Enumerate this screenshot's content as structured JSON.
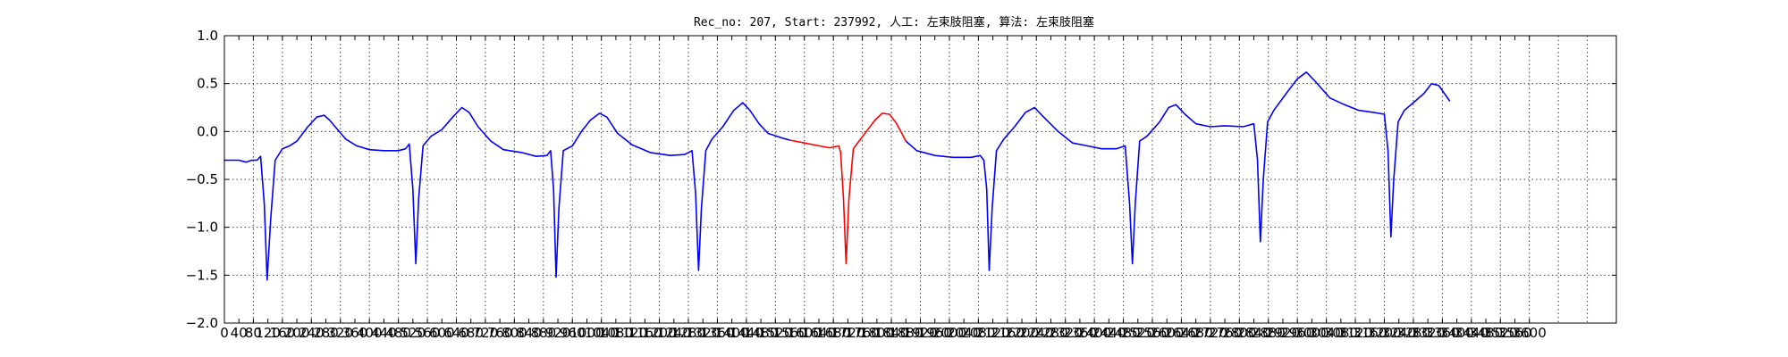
{
  "chart_data": {
    "type": "line",
    "title": "Rec_no: 207, Start: 237992, 人工: 左束肢阻塞, 算法: 左束肢阻塞",
    "xlabel": "",
    "ylabel": "",
    "xlim": [
      0,
      3840
    ],
    "ylim": [
      -2.0,
      1.0
    ],
    "grid": true,
    "legend": "none",
    "x_ticks": [
      0,
      40,
      80,
      120,
      160,
      200,
      240,
      280,
      320,
      360,
      400,
      440,
      480,
      520,
      560,
      600,
      640,
      680,
      720,
      760,
      800,
      840,
      880,
      920,
      960,
      1000,
      1040,
      1080,
      1120,
      1160,
      1200,
      1240,
      1280,
      1320,
      1360,
      1400,
      1440,
      1480,
      1520,
      1560,
      1600,
      1640,
      1680,
      1720,
      1760,
      1800,
      1840,
      1880,
      1920,
      1960,
      2000,
      2040,
      2080,
      2120,
      2160,
      2200,
      2240,
      2280,
      2320,
      2360,
      2400,
      2440,
      2480,
      2520,
      2560,
      2600,
      2640,
      2680,
      2720,
      2760,
      2800,
      2840,
      2880,
      2920,
      2960,
      3000,
      3040,
      3080,
      3120,
      3160,
      3200,
      3240,
      3280,
      3320,
      3360,
      3400,
      3440,
      3480,
      3520,
      3560,
      3600
    ],
    "x_tick_labels": [
      "0",
      "40",
      "80",
      "120",
      "160",
      "200",
      "240",
      "280",
      "320",
      "360",
      "400",
      "440",
      "480",
      "520",
      "560",
      "600",
      "640",
      "680",
      "720",
      "760",
      "800",
      "840",
      "880",
      "920",
      "960",
      "1000",
      "1040",
      "1080",
      "1120",
      "1160",
      "1200",
      "1240",
      "1280",
      "1320",
      "1360",
      "1400",
      "1440",
      "1480",
      "1520",
      "1560",
      "1600",
      "1640",
      "1680",
      "1720",
      "1760",
      "1800",
      "1840",
      "1880",
      "1920",
      "1960",
      "2000",
      "2040",
      "2080",
      "2120",
      "2160",
      "2200",
      "2240",
      "2280",
      "2320",
      "2360",
      "2400",
      "2440",
      "2480",
      "2520",
      "2560",
      "2600",
      "2640",
      "2680",
      "2720",
      "2760",
      "2800",
      "2840",
      "2880",
      "2920",
      "2960",
      "3000",
      "3040",
      "3080",
      "3120",
      "3160",
      "3200",
      "3240",
      "3280",
      "3320",
      "3360",
      "3400",
      "3440",
      "3480",
      "3520",
      "3560",
      "3600"
    ],
    "y_ticks": [
      -2.0,
      -1.5,
      -1.0,
      -0.5,
      0.0,
      0.5,
      1.0
    ],
    "y_tick_labels": [
      "−2.0",
      "−1.5",
      "−1.0",
      "−0.5",
      "0.0",
      "0.5",
      "1.0"
    ],
    "x_grid_step": 80,
    "series": [
      {
        "color": "#0000ff",
        "segments": [
          [
            [
              0,
              -0.3
            ],
            [
              40,
              -0.3
            ],
            [
              60,
              -0.32
            ],
            [
              75,
              -0.3
            ],
            [
              90,
              -0.3
            ],
            [
              100,
              -0.26
            ],
            [
              110,
              -0.75
            ],
            [
              118,
              -1.55
            ],
            [
              128,
              -0.9
            ],
            [
              140,
              -0.3
            ],
            [
              160,
              -0.18
            ],
            [
              180,
              -0.15
            ],
            [
              200,
              -0.1
            ],
            [
              230,
              0.05
            ],
            [
              255,
              0.15
            ],
            [
              275,
              0.17
            ],
            [
              290,
              0.12
            ],
            [
              310,
              0.03
            ],
            [
              335,
              -0.08
            ],
            [
              365,
              -0.15
            ],
            [
              400,
              -0.19
            ],
            [
              440,
              -0.2
            ],
            [
              480,
              -0.2
            ],
            [
              500,
              -0.18
            ],
            [
              510,
              -0.13
            ],
            [
              520,
              -0.6
            ],
            [
              528,
              -1.38
            ],
            [
              536,
              -0.7
            ],
            [
              548,
              -0.15
            ],
            [
              570,
              -0.05
            ],
            [
              600,
              0.02
            ],
            [
              630,
              0.15
            ],
            [
              655,
              0.25
            ],
            [
              675,
              0.2
            ],
            [
              700,
              0.05
            ],
            [
              735,
              -0.1
            ],
            [
              770,
              -0.19
            ],
            [
              820,
              -0.22
            ],
            [
              860,
              -0.26
            ],
            [
              890,
              -0.25
            ],
            [
              900,
              -0.2
            ],
            [
              908,
              -0.6
            ],
            [
              915,
              -1.52
            ],
            [
              923,
              -0.8
            ],
            [
              935,
              -0.2
            ],
            [
              960,
              -0.15
            ],
            [
              985,
              0.0
            ],
            [
              1010,
              0.12
            ],
            [
              1035,
              0.19
            ],
            [
              1055,
              0.15
            ],
            [
              1085,
              -0.02
            ],
            [
              1125,
              -0.14
            ],
            [
              1175,
              -0.22
            ],
            [
              1230,
              -0.25
            ],
            [
              1270,
              -0.24
            ],
            [
              1290,
              -0.2
            ],
            [
              1300,
              -0.65
            ],
            [
              1308,
              -1.45
            ],
            [
              1316,
              -0.8
            ],
            [
              1328,
              -0.2
            ],
            [
              1345,
              -0.08
            ],
            [
              1375,
              0.05
            ],
            [
              1405,
              0.22
            ],
            [
              1430,
              0.3
            ],
            [
              1450,
              0.22
            ],
            [
              1475,
              0.08
            ],
            [
              1500,
              -0.02
            ],
            [
              1540,
              -0.07
            ],
            [
              1560,
              -0.09
            ]
          ],
          [
            [
              1880,
              -0.1
            ],
            [
              1910,
              -0.2
            ],
            [
              1960,
              -0.25
            ],
            [
              2010,
              -0.27
            ],
            [
              2060,
              -0.27
            ],
            [
              2085,
              -0.25
            ],
            [
              2095,
              -0.3
            ],
            [
              2103,
              -0.6
            ],
            [
              2110,
              -1.45
            ],
            [
              2118,
              -0.8
            ],
            [
              2130,
              -0.2
            ],
            [
              2150,
              -0.08
            ],
            [
              2180,
              0.05
            ],
            [
              2210,
              0.2
            ],
            [
              2235,
              0.25
            ],
            [
              2260,
              0.15
            ],
            [
              2300,
              0.0
            ],
            [
              2340,
              -0.12
            ],
            [
              2380,
              -0.15
            ],
            [
              2420,
              -0.18
            ],
            [
              2460,
              -0.18
            ],
            [
              2485,
              -0.15
            ],
            [
              2497,
              -0.75
            ],
            [
              2505,
              -1.38
            ],
            [
              2513,
              -0.75
            ],
            [
              2525,
              -0.1
            ],
            [
              2545,
              -0.05
            ],
            [
              2580,
              0.1
            ],
            [
              2605,
              0.25
            ],
            [
              2625,
              0.28
            ],
            [
              2650,
              0.18
            ],
            [
              2680,
              0.08
            ],
            [
              2720,
              0.05
            ],
            [
              2760,
              0.06
            ],
            [
              2810,
              0.05
            ],
            [
              2840,
              0.08
            ],
            [
              2850,
              -0.3
            ],
            [
              2858,
              -1.15
            ],
            [
              2866,
              -0.5
            ],
            [
              2878,
              0.1
            ],
            [
              2895,
              0.22
            ],
            [
              2930,
              0.4
            ],
            [
              2960,
              0.55
            ],
            [
              2985,
              0.62
            ],
            [
              3010,
              0.52
            ],
            [
              3050,
              0.35
            ],
            [
              3090,
              0.28
            ],
            [
              3130,
              0.22
            ],
            [
              3170,
              0.2
            ],
            [
              3200,
              0.18
            ],
            [
              3210,
              -0.2
            ],
            [
              3218,
              -1.1
            ],
            [
              3226,
              -0.5
            ],
            [
              3238,
              0.1
            ],
            [
              3255,
              0.22
            ],
            [
              3280,
              0.3
            ],
            [
              3310,
              0.4
            ],
            [
              3330,
              0.5
            ],
            [
              3350,
              0.48
            ],
            [
              3365,
              0.4
            ],
            [
              3380,
              0.32
            ]
          ]
        ]
      },
      {
        "color": "#ff0000",
        "segments": [
          [
            [
              1560,
              -0.09
            ],
            [
              1600,
              -0.12
            ],
            [
              1640,
              -0.15
            ],
            [
              1670,
              -0.17
            ],
            [
              1695,
              -0.15
            ],
            [
              1700,
              -0.22
            ],
            [
              1708,
              -0.7
            ],
            [
              1715,
              -1.38
            ],
            [
              1723,
              -0.7
            ],
            [
              1735,
              -0.18
            ],
            [
              1755,
              -0.08
            ],
            [
              1775,
              0.02
            ],
            [
              1795,
              0.12
            ],
            [
              1815,
              0.19
            ],
            [
              1835,
              0.18
            ],
            [
              1855,
              0.08
            ],
            [
              1880,
              -0.1
            ]
          ]
        ]
      }
    ]
  }
}
